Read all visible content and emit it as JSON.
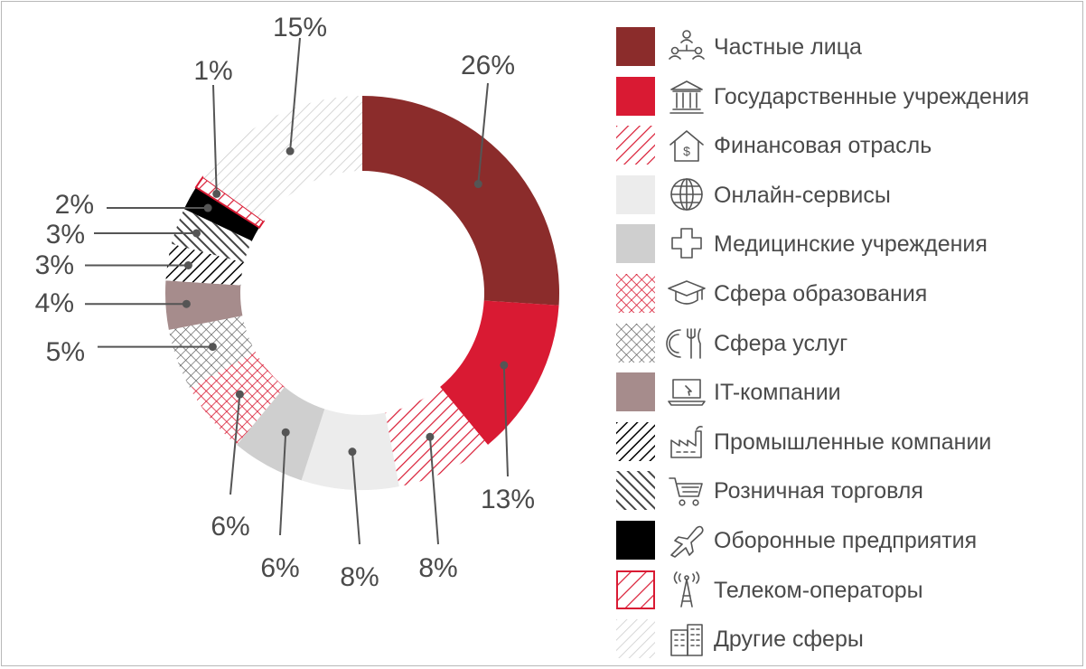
{
  "colors": {
    "dark_red": "#8b2c2b",
    "red": "#d91a33",
    "light_gray": "#ececec",
    "mid_gray": "#cfcfcf",
    "mauve": "#a68c8c",
    "black": "#000000",
    "hatch_gray": "#cccccc",
    "text": "#4a4a4a",
    "leader": "#555555"
  },
  "chart_data": {
    "type": "pie",
    "donut": true,
    "categories": [
      "Частные лица",
      "Государственные учреждения",
      "Финансовая отрасль",
      "Онлайн-сервисы",
      "Медицинские учреждения",
      "Сфера образования",
      "Сфера услуг",
      "IT-компании",
      "Промышленные компании",
      "Розничная торговля",
      "Оборонные предприятия",
      "Телеком-операторы",
      "Другие сферы"
    ],
    "values": [
      26,
      13,
      8,
      8,
      6,
      6,
      5,
      4,
      3,
      3,
      2,
      1,
      15
    ],
    "value_labels": [
      "26%",
      "13%",
      "8%",
      "8%",
      "6%",
      "6%",
      "5%",
      "4%",
      "3%",
      "3%",
      "2%",
      "1%",
      "15%"
    ],
    "fills": [
      "solid:dark_red",
      "solid:red",
      "hatch-diag:red",
      "solid:light_gray",
      "solid:mid_gray",
      "crosshatch:red",
      "crosshatch:dark_gray",
      "solid:mauve",
      "hatch-diag:black",
      "hatch-back:dark_gray",
      "solid:black",
      "hatch-diag-box:red",
      "hatch-diag:light_gray"
    ],
    "legend_position": "right"
  },
  "legend": {
    "icons": [
      "people-network-icon",
      "government-building-icon",
      "finance-house-icon",
      "globe-icon",
      "medical-cross-icon",
      "graduation-cap-icon",
      "dining-icon",
      "laptop-icon",
      "factory-icon",
      "shopping-cart-icon",
      "fighter-jet-icon",
      "telecom-tower-icon",
      "office-buildings-icon"
    ]
  }
}
